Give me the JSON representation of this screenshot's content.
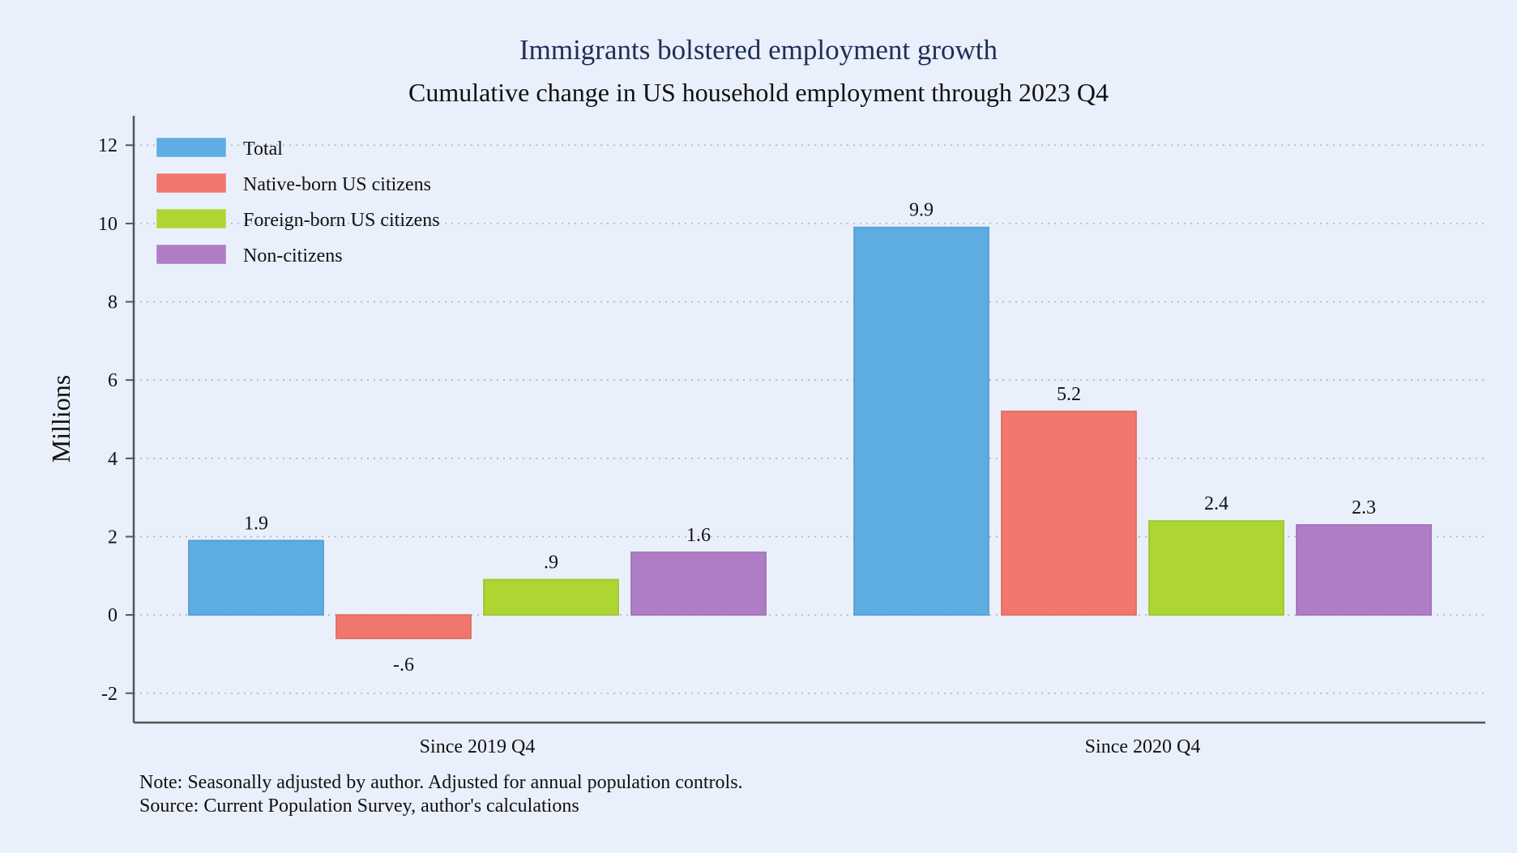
{
  "chart_data": {
    "type": "bar",
    "title": "Immigrants bolstered employment growth",
    "subtitle": "Cumulative change in US household employment through 2023 Q4",
    "ylabel": "Millions",
    "xlabel": "",
    "ylim": [
      -2.75,
      12.75
    ],
    "yticks": [
      -2,
      0,
      2,
      4,
      6,
      8,
      10,
      12
    ],
    "grid": true,
    "legend_position": "top-left",
    "categories": [
      "Since 2019 Q4",
      "Since 2020 Q4"
    ],
    "series": [
      {
        "name": "Total",
        "values": [
          1.9,
          9.9
        ],
        "labels": [
          "1.9",
          "9.9"
        ],
        "color": "#5dade2"
      },
      {
        "name": "Native-born US citizens",
        "values": [
          -0.6,
          5.2
        ],
        "labels": [
          "-.6",
          "5.2"
        ],
        "color": "#f1776c"
      },
      {
        "name": "Foreign-born US citizens",
        "values": [
          0.9,
          2.4
        ],
        "labels": [
          ".9",
          "2.4"
        ],
        "color": "#add633"
      },
      {
        "name": "Non-citizens",
        "values": [
          1.6,
          2.3
        ],
        "labels": [
          "1.6",
          "2.3"
        ],
        "color": "#af7cc6"
      }
    ],
    "notes": [
      "Note: Seasonally adjusted by author. Adjusted for annual population controls.",
      "Source: Current Population Survey, author's calculations"
    ]
  },
  "colors": {
    "background": "#eaf0fb",
    "title": "#1e2f57",
    "grid": "#aab0bd",
    "axis": "#555555"
  }
}
